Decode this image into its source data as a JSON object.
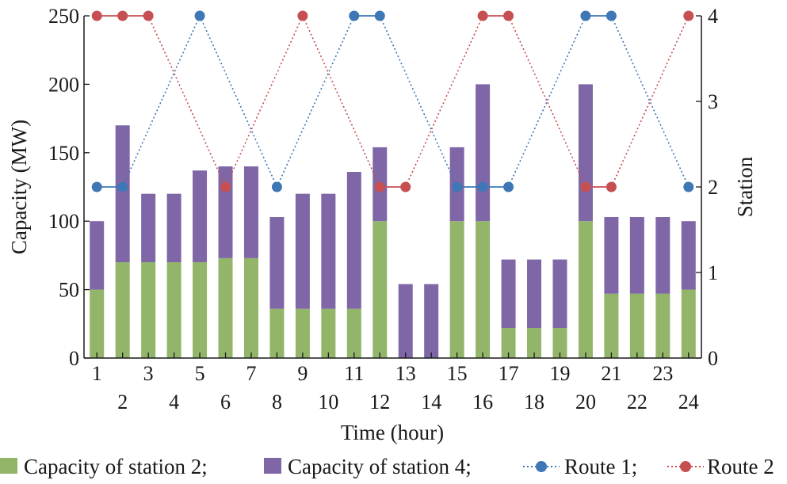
{
  "chart_data": {
    "type": "bar",
    "xlabel": "Time (hour)",
    "ylabel": "Capacity (MW)",
    "y2label": "Station",
    "ylim": [
      0,
      250
    ],
    "yticks": [
      0,
      50,
      100,
      150,
      200,
      250
    ],
    "y2lim": [
      0,
      4
    ],
    "y2ticks": [
      0,
      1,
      2,
      3,
      4
    ],
    "categories": [
      "1",
      "2",
      "3",
      "4",
      "5",
      "6",
      "7",
      "8",
      "9",
      "10",
      "11",
      "12",
      "13",
      "14",
      "15",
      "16",
      "17",
      "18",
      "19",
      "20",
      "21",
      "22",
      "23",
      "24"
    ],
    "stacked": true,
    "series": [
      {
        "name": "Capacity of station 2",
        "kind": "bar",
        "color": "#92b56a",
        "values": [
          50,
          70,
          70,
          70,
          70,
          73,
          73,
          36,
          36,
          36,
          36,
          100,
          0,
          0,
          100,
          100,
          22,
          22,
          22,
          100,
          47,
          47,
          47,
          50
        ]
      },
      {
        "name": "Capacity of station 4",
        "kind": "bar",
        "color": "#7f66a6",
        "values": [
          50,
          100,
          50,
          50,
          67,
          67,
          67,
          67,
          84,
          84,
          100,
          54,
          54,
          54,
          54,
          100,
          50,
          50,
          50,
          100,
          56,
          56,
          56,
          50
        ]
      },
      {
        "name": "Route 1",
        "kind": "line",
        "axis": "right",
        "color": "#3f77b6",
        "values": [
          2,
          2,
          null,
          null,
          4,
          null,
          null,
          2,
          null,
          null,
          4,
          4,
          null,
          null,
          2,
          2,
          2,
          null,
          null,
          4,
          4,
          null,
          null,
          2
        ]
      },
      {
        "name": "Route 2",
        "kind": "line",
        "axis": "right",
        "color": "#c64f52",
        "values": [
          4,
          4,
          4,
          null,
          null,
          2,
          null,
          null,
          4,
          null,
          null,
          2,
          2,
          null,
          null,
          4,
          4,
          null,
          null,
          2,
          2,
          null,
          null,
          4
        ]
      }
    ],
    "legend": {
      "position": "bottom",
      "labels": [
        "Capacity of station 2;",
        "Capacity of station 4;",
        "Route 1;",
        "Route 2"
      ]
    },
    "grid": false
  }
}
